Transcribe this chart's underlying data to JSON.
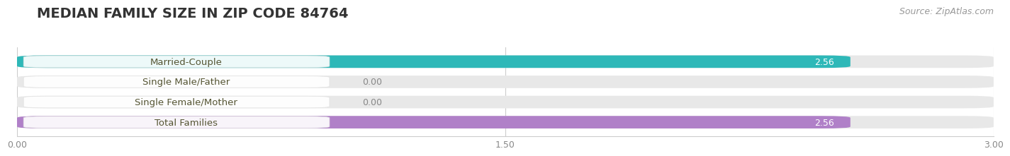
{
  "title": "MEDIAN FAMILY SIZE IN ZIP CODE 84764",
  "source": "Source: ZipAtlas.com",
  "categories": [
    "Married-Couple",
    "Single Male/Father",
    "Single Female/Mother",
    "Total Families"
  ],
  "values": [
    2.56,
    0.0,
    0.0,
    2.56
  ],
  "bar_colors": [
    "#2eb8b8",
    "#9ab0e0",
    "#f0a0b8",
    "#b080c8"
  ],
  "xlim": [
    0,
    3.0
  ],
  "xticks": [
    0.0,
    1.5,
    3.0
  ],
  "xtick_labels": [
    "0.00",
    "1.50",
    "3.00"
  ],
  "value_labels": [
    "2.56",
    "0.00",
    "0.00",
    "2.56"
  ],
  "bar_height": 0.62,
  "background_color": "#ffffff",
  "bar_bg_color": "#e8e8e8",
  "title_fontsize": 14,
  "source_fontsize": 9,
  "label_fontsize": 9.5,
  "value_fontsize": 9
}
